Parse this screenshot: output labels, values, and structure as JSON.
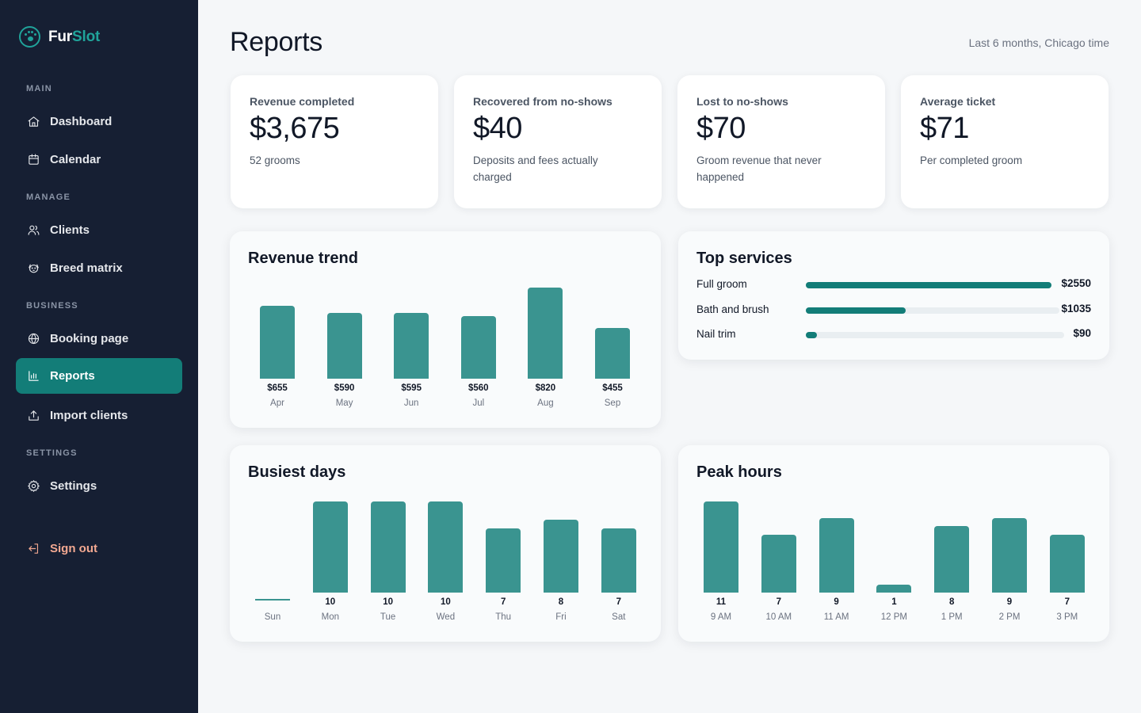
{
  "brand": {
    "name_part1": "Fur",
    "name_part2": "Slot",
    "colors": {
      "accent": "#20a39a",
      "sidebar_bg": "#161f33",
      "active_bg": "#137d78",
      "bar": "#3a9490",
      "signout": "#f2a891"
    }
  },
  "sidebar": {
    "sections": [
      {
        "label": "MAIN",
        "items": [
          {
            "label": "Dashboard",
            "icon": "home-icon"
          },
          {
            "label": "Calendar",
            "icon": "calendar-icon"
          }
        ]
      },
      {
        "label": "MANAGE",
        "items": [
          {
            "label": "Clients",
            "icon": "users-icon"
          },
          {
            "label": "Breed matrix",
            "icon": "dog-icon"
          }
        ]
      },
      {
        "label": "BUSINESS",
        "items": [
          {
            "label": "Booking page",
            "icon": "globe-icon"
          },
          {
            "label": "Reports",
            "icon": "bar-chart-icon",
            "active": true
          },
          {
            "label": "Import clients",
            "icon": "upload-icon"
          }
        ]
      },
      {
        "label": "SETTINGS",
        "items": [
          {
            "label": "Settings",
            "icon": "gear-icon"
          }
        ]
      }
    ],
    "sign_out": {
      "label": "Sign out",
      "icon": "sign-out-icon"
    }
  },
  "header": {
    "title": "Reports",
    "range": "Last 6 months, Chicago time"
  },
  "stats": [
    {
      "label": "Revenue completed",
      "value": "$3,675",
      "sub": "52 grooms"
    },
    {
      "label": "Recovered from no-shows",
      "value": "$40",
      "sub": "Deposits and fees actually charged"
    },
    {
      "label": "Lost to no-shows",
      "value": "$70",
      "sub": "Groom revenue that never happened"
    },
    {
      "label": "Average ticket",
      "value": "$71",
      "sub": "Per completed groom"
    }
  ],
  "chart_data": [
    {
      "type": "bar",
      "title": "Revenue trend",
      "categories": [
        "Apr",
        "May",
        "Jun",
        "Jul",
        "Aug",
        "Sep"
      ],
      "values": [
        655,
        590,
        595,
        560,
        820,
        455
      ],
      "value_labels": [
        "$655",
        "$590",
        "$595",
        "$560",
        "$820",
        "$455"
      ],
      "ylim": [
        0,
        820
      ],
      "grid": false
    },
    {
      "type": "bar",
      "title": "Top services",
      "orientation": "horizontal",
      "categories": [
        "Full groom",
        "Bath and brush",
        "Nail trim"
      ],
      "values": [
        2550,
        1035,
        90
      ],
      "value_labels": [
        "$2550",
        "$1035",
        "$90"
      ]
    },
    {
      "type": "bar",
      "title": "Busiest days",
      "categories": [
        "Sun",
        "Mon",
        "Tue",
        "Wed",
        "Thu",
        "Fri",
        "Sat"
      ],
      "values": [
        0,
        10,
        10,
        10,
        7,
        8,
        7
      ],
      "value_labels": [
        "",
        "10",
        "10",
        "10",
        "7",
        "8",
        "7"
      ],
      "ylim": [
        0,
        10
      ],
      "grid": false
    },
    {
      "type": "bar",
      "title": "Peak hours",
      "categories": [
        "9 AM",
        "10 AM",
        "11 AM",
        "12 PM",
        "1 PM",
        "2 PM",
        "3 PM"
      ],
      "values": [
        11,
        7,
        9,
        1,
        8,
        9,
        7
      ],
      "value_labels": [
        "11",
        "7",
        "9",
        "1",
        "8",
        "9",
        "7"
      ],
      "ylim": [
        0,
        11
      ],
      "grid": false
    }
  ]
}
